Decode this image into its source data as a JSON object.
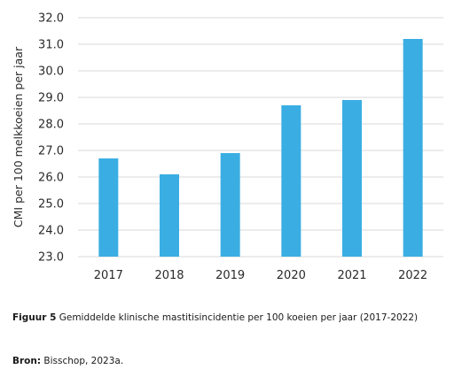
{
  "chart_data": {
    "type": "bar",
    "categories": [
      "2017",
      "2018",
      "2019",
      "2020",
      "2021",
      "2022"
    ],
    "values": [
      26.7,
      26.1,
      26.9,
      28.7,
      28.9,
      31.2
    ],
    "ylabel": "CMI per 100 melkkoeien per jaar",
    "xlabel": "",
    "ylim": [
      23.0,
      32.0
    ],
    "yticks": [
      "23.0",
      "24.0",
      "25.0",
      "26.0",
      "27.0",
      "28.0",
      "29.0",
      "30.0",
      "31.0",
      "32.0"
    ],
    "grid": true,
    "bar_color": "#3aaee3",
    "grid_color": "#d9d9d9"
  },
  "caption": {
    "figure_label": "Figuur 5",
    "figure_text": "Gemiddelde klinische mastitisincidentie per 100 koeien per jaar (2017-2022)",
    "source_label": "Bron:",
    "source_text": "Bisschop, 2023a."
  }
}
